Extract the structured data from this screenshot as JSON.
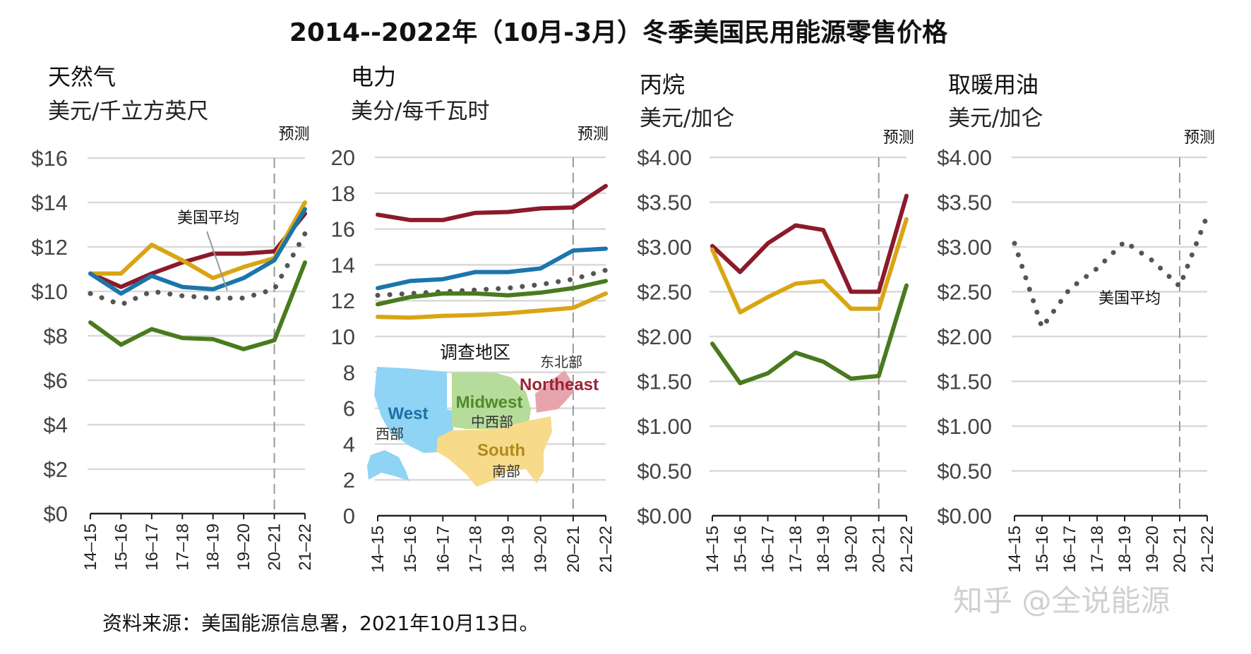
{
  "title": "2014--2022年（10月-3月）冬季美国民用能源零售价格",
  "source": "资料来源：美国能源信息署，2021年10月13日。",
  "watermark": "知乎 @全说能源",
  "forecast_label": "预测",
  "avg_label": "美国平均",
  "map": {
    "title": "调查地区",
    "regions": [
      {
        "en": "Northeast",
        "zh": "东北部",
        "color": "#e8a4ad",
        "text_color": "#9b2335"
      },
      {
        "en": "Midwest",
        "zh": "中西部",
        "color": "#b5dc9a",
        "text_color": "#4f8a2c"
      },
      {
        "en": "West",
        "zh": "西部",
        "color": "#8fd3f5",
        "text_color": "#1d6fa5"
      },
      {
        "en": "South",
        "zh": "南部",
        "color": "#f7da8a",
        "text_color": "#b08a1a"
      }
    ]
  },
  "colors": {
    "Northeast": "#8b1a2b",
    "South": "#d9a514",
    "West": "#1b75ab",
    "Midwest": "#4a7a1e",
    "US average": "#555555"
  },
  "chart_data": [
    {
      "type": "line",
      "title": "天然气",
      "ylabel": "美元/千立方英尺",
      "categories": [
        "14–15",
        "15–16",
        "16–17",
        "17–18",
        "18–19",
        "19–20",
        "20–21",
        "21–22"
      ],
      "ylim": [
        0,
        16
      ],
      "yticks": [
        "$0",
        "$2",
        "$4",
        "$6",
        "$8",
        "$10",
        "$12",
        "$14",
        "$16"
      ],
      "forecast_from": "20–21",
      "grid": true,
      "series": [
        {
          "region": "Northeast",
          "values": [
            10.8,
            10.2,
            10.8,
            11.3,
            11.7,
            11.7,
            11.8,
            13.5
          ]
        },
        {
          "region": "South",
          "values": [
            10.8,
            10.8,
            12.1,
            11.4,
            10.6,
            11.1,
            11.5,
            14.0
          ]
        },
        {
          "region": "West",
          "values": [
            10.8,
            9.9,
            10.7,
            10.2,
            10.1,
            10.6,
            11.4,
            13.7
          ]
        },
        {
          "region": "Midwest",
          "values": [
            8.6,
            7.6,
            8.3,
            7.9,
            7.85,
            7.4,
            7.8,
            11.3
          ]
        },
        {
          "region": "US average",
          "dotted": true,
          "values": [
            9.9,
            9.4,
            10.0,
            9.8,
            9.7,
            9.7,
            10.1,
            12.6
          ]
        }
      ]
    },
    {
      "type": "line",
      "title": "电力",
      "ylabel": "美分/每千瓦时",
      "categories": [
        "14–15",
        "15–16",
        "16–17",
        "17–18",
        "18–19",
        "19–20",
        "20–21",
        "21–22"
      ],
      "ylim": [
        0,
        20
      ],
      "yticks": [
        "0",
        "2",
        "4",
        "6",
        "8",
        "10",
        "12",
        "14",
        "16",
        "18",
        "20"
      ],
      "forecast_from": "20–21",
      "grid": true,
      "series": [
        {
          "region": "Northeast",
          "values": [
            16.8,
            16.5,
            16.5,
            16.9,
            16.95,
            17.15,
            17.2,
            18.4
          ]
        },
        {
          "region": "West",
          "values": [
            12.7,
            13.1,
            13.2,
            13.6,
            13.6,
            13.8,
            14.8,
            14.9
          ]
        },
        {
          "region": "US average",
          "dotted": true,
          "values": [
            12.3,
            12.4,
            12.5,
            12.6,
            12.7,
            12.9,
            13.2,
            13.7
          ]
        },
        {
          "region": "Midwest",
          "values": [
            11.8,
            12.2,
            12.4,
            12.4,
            12.3,
            12.45,
            12.7,
            13.1
          ]
        },
        {
          "region": "South",
          "values": [
            11.1,
            11.05,
            11.15,
            11.2,
            11.3,
            11.45,
            11.6,
            12.4
          ]
        }
      ]
    },
    {
      "type": "line",
      "title": "丙烷",
      "ylabel": "美元/加仑",
      "categories": [
        "14–15",
        "15–16",
        "16–17",
        "17–18",
        "18–19",
        "19–20",
        "20–21",
        "21–22"
      ],
      "ylim": [
        0,
        4
      ],
      "yticks": [
        "$0.00",
        "$0.50",
        "$1.00",
        "$1.50",
        "$2.00",
        "$2.50",
        "$3.00",
        "$3.50",
        "$4.00"
      ],
      "forecast_from": "20–21",
      "grid": true,
      "series": [
        {
          "region": "Northeast",
          "values": [
            3.01,
            2.72,
            3.04,
            3.24,
            3.19,
            2.5,
            2.5,
            3.57
          ]
        },
        {
          "region": "South",
          "values": [
            2.97,
            2.27,
            2.44,
            2.59,
            2.62,
            2.31,
            2.31,
            3.31
          ]
        },
        {
          "region": "Midwest",
          "values": [
            1.92,
            1.48,
            1.59,
            1.82,
            1.72,
            1.53,
            1.56,
            2.57
          ]
        }
      ]
    },
    {
      "type": "line",
      "title": "取暖用油",
      "ylabel": "美元/加仑",
      "categories": [
        "14–15",
        "15–16",
        "16–17",
        "17–18",
        "18–19",
        "19–20",
        "20–21",
        "21–22"
      ],
      "ylim": [
        0,
        4
      ],
      "yticks": [
        "$0.00",
        "$0.50",
        "$1.00",
        "$1.50",
        "$2.00",
        "$2.50",
        "$3.00",
        "$3.50",
        "$4.00"
      ],
      "forecast_from": "20–21",
      "grid": true,
      "series": [
        {
          "region": "US average",
          "dotted": true,
          "values": [
            3.04,
            2.1,
            2.53,
            2.76,
            3.06,
            2.85,
            2.56,
            3.35
          ]
        }
      ]
    }
  ]
}
